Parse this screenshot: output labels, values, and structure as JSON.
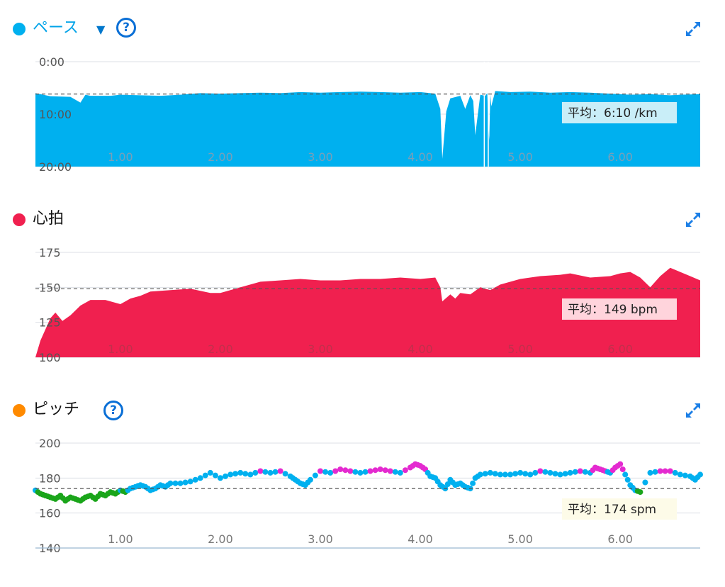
{
  "colors": {
    "pace": "#00b0ef",
    "heart": "#f0204f",
    "cadence_dot": "#ff8a00",
    "cadence_blue": "#00b0ef",
    "cadence_green": "#1aa51a",
    "cadence_pink": "#e42ad0",
    "help": "#0a6fd6"
  },
  "icons": {
    "help": "question-circle-icon",
    "expand": "expand-arrows-icon",
    "dropdown": "caret-down-icon"
  },
  "pace_panel": {
    "title": "ペース",
    "help_glyph": "?",
    "avg_label": "平均：6:10 /km"
  },
  "heart_panel": {
    "title": "心拍",
    "avg_label": "平均：149 bpm"
  },
  "cadence_panel": {
    "title": "ピッチ",
    "help_glyph": "?",
    "avg_label": "平均：174 spm"
  },
  "chart_data": [
    {
      "type": "area",
      "name": "pace",
      "y_reversed": true,
      "ylim": [
        0,
        20
      ],
      "xlim": [
        0.15,
        6.8
      ],
      "x_ticks": [
        "1.00",
        "2.00",
        "3.00",
        "4.00",
        "5.00",
        "6.00"
      ],
      "x_tick_values": [
        1,
        2,
        3,
        4,
        5,
        6
      ],
      "y_ticks": [
        "0:00",
        "10:00",
        "20:00"
      ],
      "y_tick_values": [
        0,
        10,
        20
      ],
      "average": 6.17,
      "avg_text": "平均：6:10 /km",
      "x": [
        0.15,
        0.3,
        0.5,
        0.6,
        0.65,
        0.7,
        0.9,
        1.0,
        1.2,
        1.4,
        1.6,
        1.8,
        2.0,
        2.2,
        2.4,
        2.6,
        2.8,
        3.0,
        3.2,
        3.4,
        3.6,
        3.8,
        4.0,
        4.15,
        4.2,
        4.22,
        4.26,
        4.3,
        4.4,
        4.45,
        4.5,
        4.53,
        4.55,
        4.6,
        4.65,
        4.67,
        4.68,
        4.69,
        4.7,
        4.71,
        4.75,
        4.9,
        5.1,
        5.3,
        5.5,
        5.7,
        5.9,
        6.1,
        6.3,
        6.5,
        6.6,
        6.8
      ],
      "y": [
        6.0,
        6.6,
        6.7,
        7.8,
        6.3,
        6.5,
        6.5,
        6.3,
        6.4,
        6.5,
        6.3,
        6.0,
        6.1,
        6.0,
        5.9,
        6.0,
        5.8,
        5.9,
        5.8,
        5.7,
        5.8,
        5.9,
        5.8,
        6.1,
        9.0,
        18.5,
        9.5,
        7.0,
        6.5,
        9.0,
        6.4,
        7.5,
        14.0,
        6.3,
        6.5,
        6.0,
        12.0,
        15.0,
        6.2,
        8.5,
        5.6,
        5.8,
        5.7,
        5.9,
        5.8,
        5.9,
        6.1,
        6.3,
        6.2,
        6.4,
        6.3,
        6.2
      ]
    },
    {
      "type": "area",
      "name": "heart_rate",
      "ylim": [
        100,
        175
      ],
      "xlim": [
        0.15,
        6.8
      ],
      "x_ticks": [
        "1.00",
        "2.00",
        "3.00",
        "4.00",
        "5.00",
        "6.00"
      ],
      "x_tick_values": [
        1,
        2,
        3,
        4,
        5,
        6
      ],
      "y_ticks": [
        "175",
        "150",
        "125",
        "100"
      ],
      "y_tick_values": [
        175,
        150,
        125,
        100
      ],
      "average": 149,
      "avg_text": "平均：149 bpm",
      "x": [
        0.15,
        0.2,
        0.3,
        0.35,
        0.42,
        0.5,
        0.6,
        0.7,
        0.85,
        1.0,
        1.05,
        1.1,
        1.2,
        1.3,
        1.5,
        1.7,
        1.9,
        2.0,
        2.2,
        2.4,
        2.6,
        2.8,
        3.0,
        3.2,
        3.4,
        3.6,
        3.8,
        4.0,
        4.15,
        4.2,
        4.22,
        4.3,
        4.35,
        4.4,
        4.5,
        4.6,
        4.7,
        4.8,
        5.0,
        5.2,
        5.4,
        5.5,
        5.7,
        5.9,
        6.0,
        6.1,
        6.2,
        6.3,
        6.4,
        6.5,
        6.6,
        6.7,
        6.8
      ],
      "y": [
        100,
        112,
        128,
        132,
        126,
        130,
        137,
        141,
        141,
        138,
        140,
        142,
        144,
        147,
        148,
        149,
        146,
        146,
        150,
        154,
        155,
        156,
        155,
        155,
        156,
        156,
        157,
        156,
        157,
        150,
        140,
        145,
        142,
        146,
        145,
        150,
        148,
        152,
        156,
        158,
        159,
        160,
        157,
        158,
        160,
        161,
        157,
        150,
        158,
        164,
        161,
        158,
        155
      ]
    },
    {
      "type": "scatter",
      "name": "cadence",
      "ylim": [
        140,
        200
      ],
      "xlim": [
        0.15,
        6.8
      ],
      "x_ticks": [
        "1.00",
        "2.00",
        "3.00",
        "4.00",
        "5.00",
        "6.00"
      ],
      "x_tick_values": [
        1,
        2,
        3,
        4,
        5,
        6
      ],
      "y_ticks": [
        "200",
        "180",
        "160",
        "140"
      ],
      "y_tick_values": [
        200,
        180,
        160,
        140
      ],
      "average": 174,
      "avg_text": "平均：174 spm",
      "x": [
        0.15,
        0.2,
        0.25,
        0.3,
        0.35,
        0.4,
        0.45,
        0.5,
        0.55,
        0.6,
        0.65,
        0.7,
        0.75,
        0.8,
        0.85,
        0.9,
        0.95,
        1.0,
        1.05,
        1.1,
        1.15,
        1.2,
        1.25,
        1.3,
        1.35,
        1.4,
        1.45,
        1.5,
        1.6,
        1.7,
        1.8,
        1.9,
        2.0,
        2.1,
        2.2,
        2.3,
        2.4,
        2.5,
        2.6,
        2.7,
        2.75,
        2.8,
        2.85,
        2.9,
        3.0,
        3.1,
        3.2,
        3.3,
        3.4,
        3.5,
        3.6,
        3.7,
        3.8,
        3.9,
        3.95,
        4.0,
        4.05,
        4.1,
        4.15,
        4.2,
        4.25,
        4.3,
        4.35,
        4.4,
        4.45,
        4.5,
        4.55,
        4.6,
        4.7,
        4.8,
        4.9,
        5.0,
        5.1,
        5.2,
        5.3,
        5.4,
        5.5,
        5.6,
        5.7,
        5.75,
        5.8,
        5.85,
        5.9,
        5.95,
        6.0,
        6.05,
        6.1,
        6.15,
        6.2,
        6.3,
        6.4,
        6.5,
        6.6,
        6.7,
        6.75,
        6.8
      ],
      "y": [
        173,
        171,
        170,
        169,
        168,
        170,
        167,
        169,
        168,
        167,
        169,
        170,
        168,
        171,
        170,
        172,
        171,
        173,
        172,
        174,
        175,
        176,
        175,
        173,
        174,
        176,
        175,
        177,
        177,
        178,
        180,
        183,
        180,
        182,
        183,
        182,
        184,
        183,
        184,
        181,
        179,
        177,
        176,
        179,
        184,
        183,
        185,
        184,
        183,
        184,
        185,
        184,
        183,
        186,
        188,
        187,
        185,
        181,
        180,
        176,
        174,
        179,
        176,
        177,
        175,
        174,
        180,
        182,
        183,
        182,
        182,
        183,
        182,
        184,
        183,
        182,
        183,
        184,
        183,
        186,
        185,
        184,
        183,
        186,
        188,
        182,
        176,
        173,
        172,
        183,
        184,
        184,
        182,
        181,
        179,
        182
      ]
    }
  ]
}
